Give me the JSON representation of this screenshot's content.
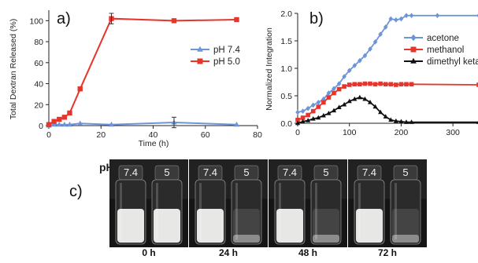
{
  "chart_data": [
    {
      "panel": "a)",
      "type": "line",
      "xlabel": "Time (h)",
      "ylabel": "Total Dextran Released (%)",
      "xlim": [
        0,
        80
      ],
      "ylim": [
        0,
        110
      ],
      "xticks": [
        0,
        20,
        40,
        60,
        80
      ],
      "yticks": [
        0,
        20,
        40,
        60,
        80,
        100
      ],
      "legend_position": "right",
      "series": [
        {
          "name": "pH 7.4",
          "color": "#6d95d8",
          "marker": "triangle",
          "x": [
            0,
            2,
            4,
            6,
            8,
            12,
            24,
            48,
            72
          ],
          "y": [
            0,
            1,
            1,
            1,
            1,
            2,
            1,
            3,
            1
          ]
        },
        {
          "name": "pH 5.0",
          "color": "#e8352b",
          "marker": "square",
          "x": [
            0,
            2,
            4,
            6,
            8,
            12,
            24,
            48,
            72
          ],
          "y": [
            1,
            4,
            6,
            8,
            12,
            35,
            102,
            100,
            101
          ]
        }
      ]
    },
    {
      "panel": "b)",
      "type": "line",
      "xlabel": "",
      "ylabel": "Normalized Integration",
      "xlim": [
        0,
        350
      ],
      "ylim": [
        0,
        2.0
      ],
      "xticks": [
        0,
        100,
        200,
        300
      ],
      "yticks": [
        0.0,
        0.5,
        1.0,
        1.5,
        2.0
      ],
      "ytick_labels": [
        "0.0",
        "0.5",
        "1.0",
        "1.5",
        "2.0"
      ],
      "legend_position": "right",
      "series": [
        {
          "name": "acetone",
          "color": "#6d95d8",
          "marker": "diamond",
          "x": [
            0,
            10,
            20,
            30,
            40,
            50,
            60,
            70,
            80,
            90,
            100,
            110,
            120,
            130,
            140,
            150,
            160,
            170,
            180,
            190,
            200,
            210,
            220,
            270,
            350
          ],
          "y": [
            0.2,
            0.22,
            0.27,
            0.33,
            0.38,
            0.44,
            0.55,
            0.63,
            0.72,
            0.85,
            0.96,
            1.05,
            1.14,
            1.23,
            1.35,
            1.48,
            1.62,
            1.75,
            1.9,
            1.88,
            1.9,
            1.96,
            1.96,
            1.96,
            1.96
          ]
        },
        {
          "name": "methanol",
          "color": "#e8352b",
          "marker": "square",
          "x": [
            0,
            10,
            20,
            30,
            40,
            50,
            60,
            70,
            80,
            90,
            100,
            110,
            120,
            130,
            140,
            150,
            160,
            170,
            180,
            190,
            200,
            210,
            220,
            350
          ],
          "y": [
            0.06,
            0.1,
            0.15,
            0.22,
            0.3,
            0.38,
            0.47,
            0.55,
            0.62,
            0.67,
            0.7,
            0.71,
            0.71,
            0.72,
            0.72,
            0.71,
            0.72,
            0.71,
            0.71,
            0.7,
            0.71,
            0.71,
            0.71,
            0.7
          ]
        },
        {
          "name": "dimethyl ketal",
          "color": "#111111",
          "marker": "triangle",
          "x": [
            0,
            10,
            20,
            30,
            40,
            50,
            60,
            70,
            80,
            90,
            100,
            110,
            120,
            130,
            140,
            150,
            160,
            170,
            180,
            190,
            200,
            210,
            220,
            350
          ],
          "y": [
            0.0,
            0.03,
            0.05,
            0.08,
            0.1,
            0.14,
            0.18,
            0.23,
            0.29,
            0.34,
            0.4,
            0.44,
            0.47,
            0.44,
            0.38,
            0.3,
            0.2,
            0.12,
            0.06,
            0.04,
            0.03,
            0.02,
            0.02,
            0.02
          ]
        }
      ]
    }
  ],
  "panel_c": {
    "label": "c)",
    "ph_label": "pH",
    "photos": [
      {
        "time": "0 h",
        "vials": [
          "7.4",
          "5"
        ],
        "state": [
          "cloudy",
          "cloudy"
        ]
      },
      {
        "time": "24 h",
        "vials": [
          "7.4",
          "5"
        ],
        "state": [
          "cloudy",
          "clear"
        ]
      },
      {
        "time": "48 h",
        "vials": [
          "7.4",
          "5"
        ],
        "state": [
          "cloudy",
          "clear"
        ]
      },
      {
        "time": "72 h",
        "vials": [
          "7.4",
          "5"
        ],
        "state": [
          "cloudy",
          "clear"
        ]
      }
    ]
  }
}
